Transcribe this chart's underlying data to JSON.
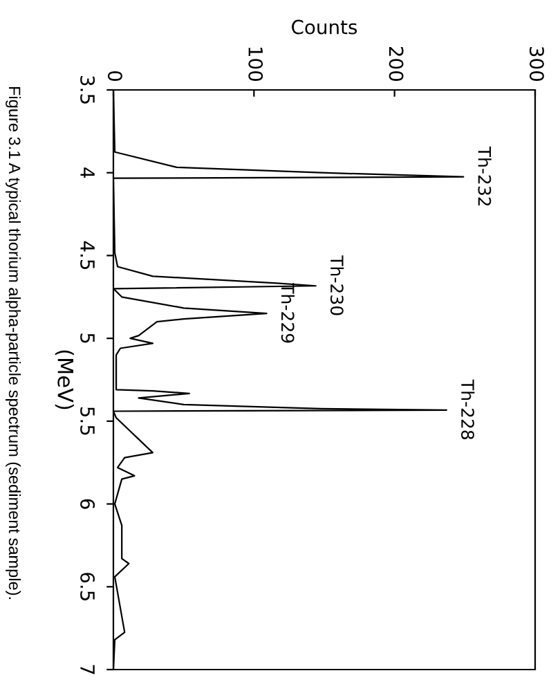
{
  "chart_data": {
    "type": "line",
    "ylabel": "(MeV)",
    "xlabel": "Counts",
    "x": [
      3.5,
      3.875,
      3.967,
      4.0,
      4.025,
      4.033,
      4.483,
      4.567,
      4.625,
      4.667,
      4.683,
      4.7,
      4.75,
      4.817,
      4.85,
      4.883,
      4.9,
      4.983,
      5.0,
      5.03,
      5.06,
      5.1,
      5.31,
      5.317,
      5.333,
      5.36,
      5.4,
      5.425,
      5.433,
      5.44,
      5.48,
      5.69,
      5.72,
      5.78,
      5.83,
      5.85,
      6.0,
      6.13,
      6.33,
      6.36,
      6.44,
      6.775,
      6.82,
      7.0
    ],
    "series": [
      {
        "color": "#000000",
        "values": [
          0,
          1,
          45,
          148,
          249,
          0,
          1,
          3,
          28,
          116,
          144,
          0,
          6,
          50,
          109,
          50,
          31,
          18,
          12,
          28,
          5,
          2,
          2,
          28,
          54,
          18,
          50,
          148,
          237,
          0,
          2,
          28,
          8,
          3,
          15,
          6,
          1,
          6,
          6,
          11,
          1,
          8,
          1,
          0
        ]
      }
    ],
    "orientation": "horizontal",
    "ylim": [
      7,
      3.5
    ],
    "yticks": [
      3.5,
      4,
      4.5,
      5,
      5.5,
      6,
      6.5,
      7
    ],
    "xlim": [
      0,
      300
    ],
    "xticks": [
      0,
      100,
      200,
      300
    ],
    "grid": false,
    "legend": false,
    "marker": "none",
    "line_style": "solid",
    "annotations": [
      {
        "text": "Th-232",
        "x": 249,
        "y": 4.025
      },
      {
        "text": "Th-230",
        "x": 144,
        "y": 4.683
      },
      {
        "text": "Th-229",
        "x": 109,
        "y": 4.85
      },
      {
        "text": "Th-228",
        "x": 237,
        "y": 5.433
      },
      "Figure 3.1 A typical thorium alpha-particle spectrum (sediment sample)."
    ]
  }
}
